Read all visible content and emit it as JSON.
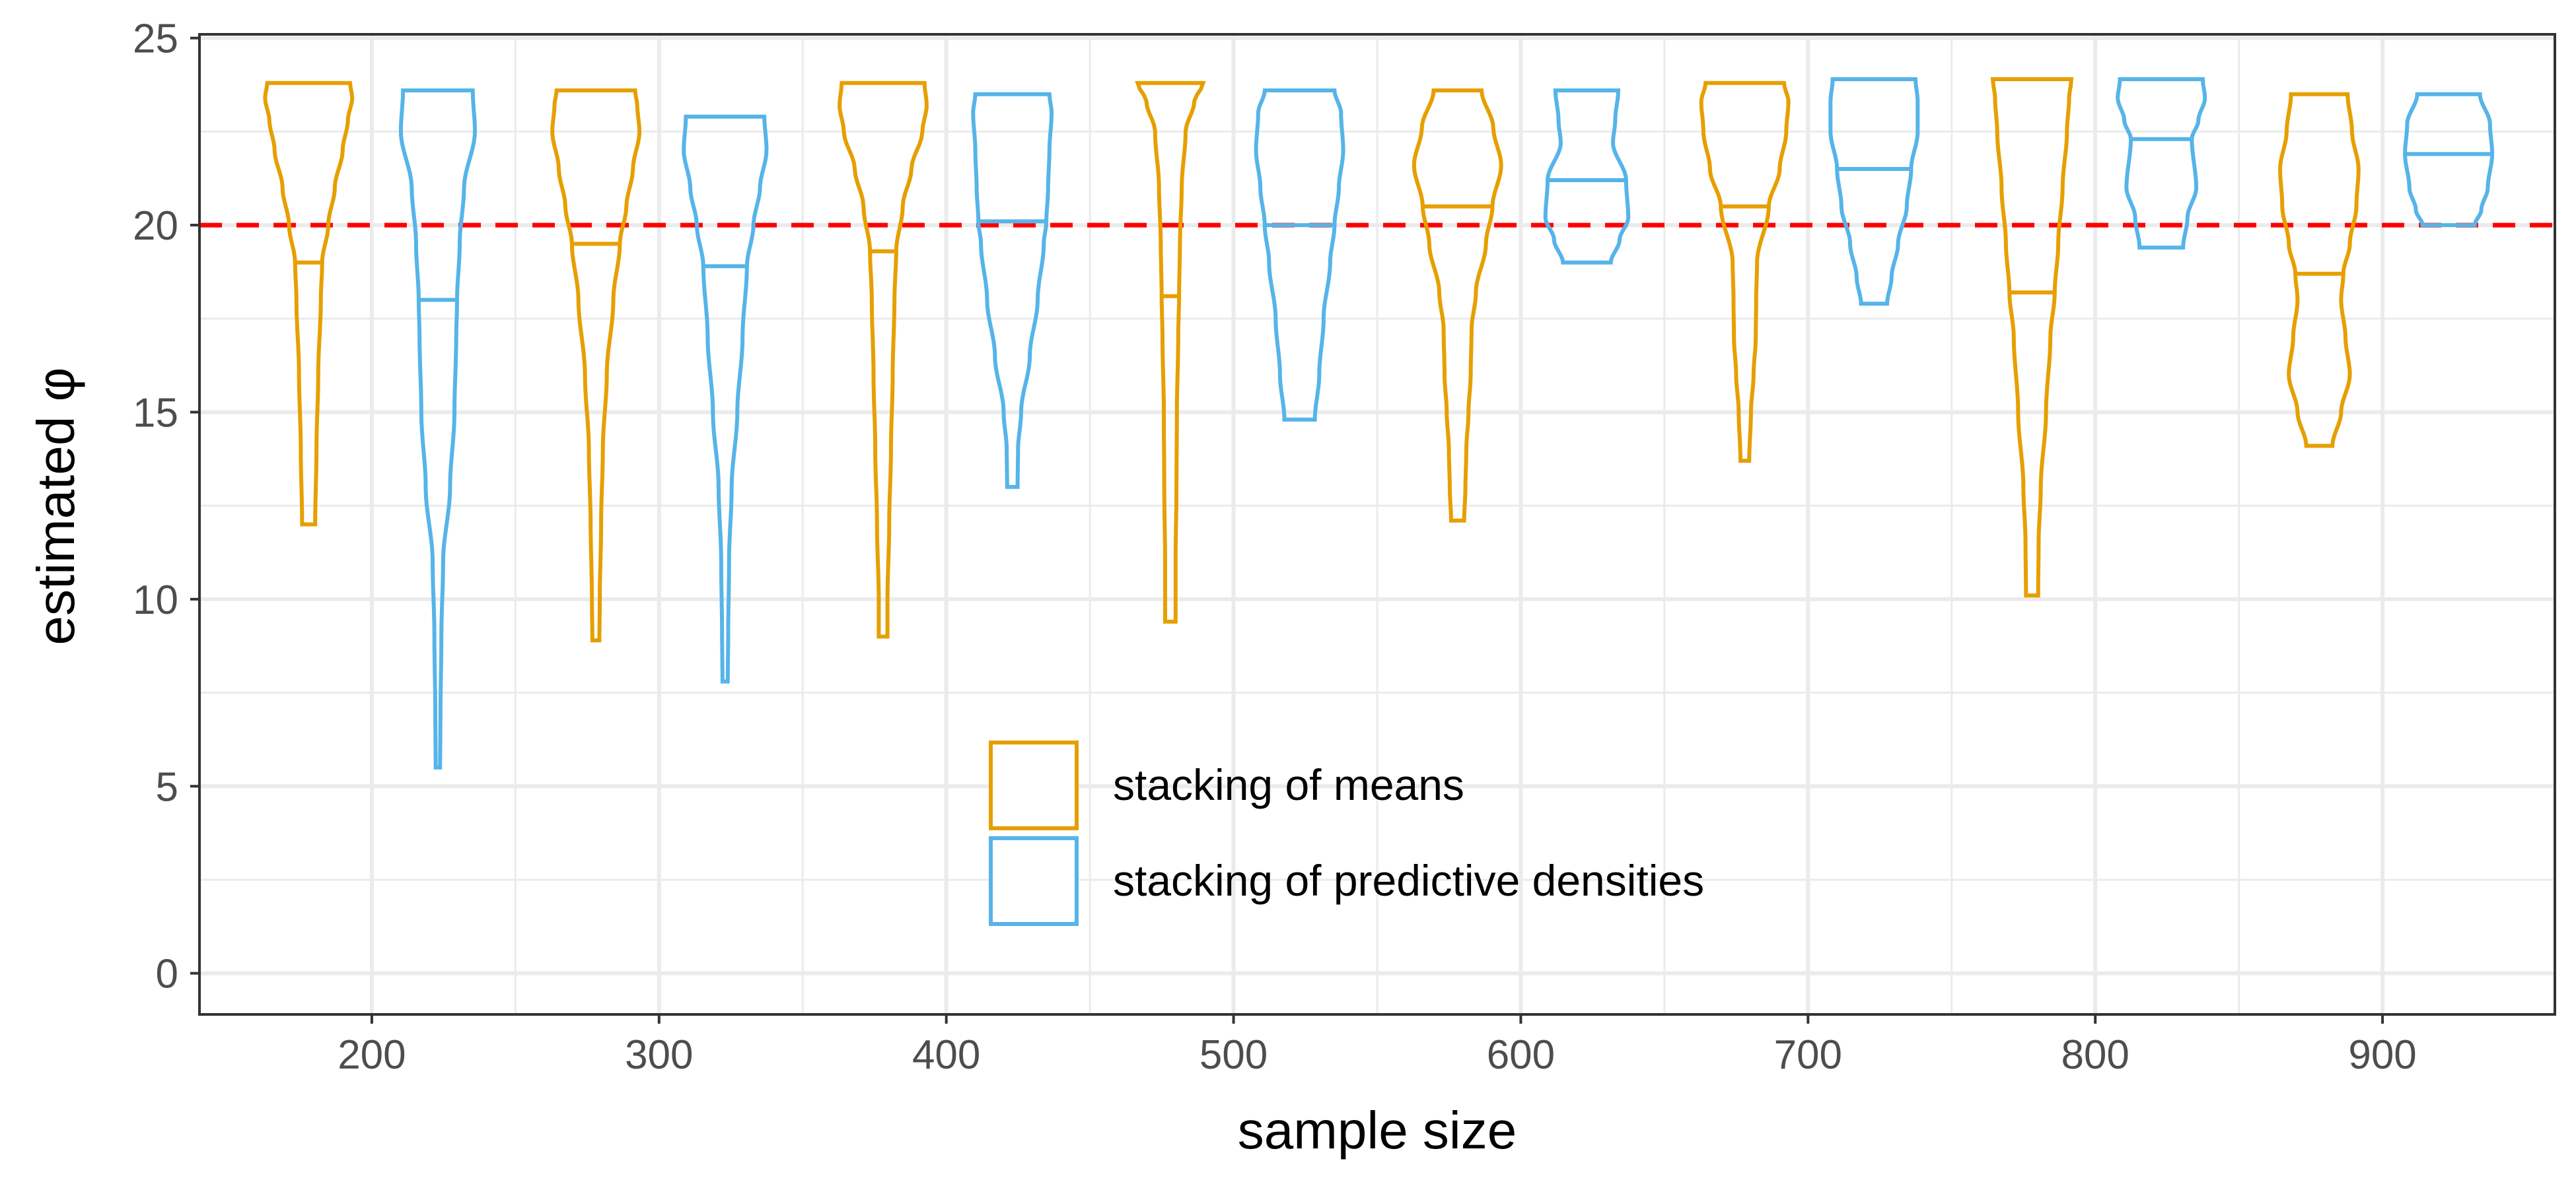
{
  "chart_data": {
    "type": "violin",
    "xlabel": "sample size",
    "ylabel": "estimated φ",
    "xlim": [
      140,
      960
    ],
    "ylim": [
      -1.1,
      25.1
    ],
    "x_ticks": [
      200,
      300,
      400,
      500,
      600,
      700,
      800,
      900
    ],
    "y_ticks": [
      0,
      5,
      10,
      15,
      20,
      25
    ],
    "reference_line": {
      "y": 20,
      "color": "#ff0000",
      "style": "dashed"
    },
    "legend_position": "bottom-center",
    "series": [
      {
        "name": "stacking of means",
        "color": "#e69f00",
        "violins": [
          {
            "x": 178,
            "min": 12.0,
            "max": 23.8,
            "median": 19.0,
            "profile": [
              [
                12.0,
                0.15
              ],
              [
                14,
                0.18
              ],
              [
                16,
                0.22
              ],
              [
                18,
                0.28
              ],
              [
                19,
                0.31
              ],
              [
                20,
                0.45
              ],
              [
                21,
                0.6
              ],
              [
                22,
                0.78
              ],
              [
                22.8,
                0.9
              ],
              [
                23.4,
                1.0
              ],
              [
                23.8,
                0.95
              ]
            ]
          },
          {
            "x": 278,
            "min": 8.9,
            "max": 23.6,
            "median": 19.5,
            "profile": [
              [
                8.9,
                0.08
              ],
              [
                10,
                0.09
              ],
              [
                12,
                0.12
              ],
              [
                14,
                0.16
              ],
              [
                16,
                0.25
              ],
              [
                18,
                0.4
              ],
              [
                19.5,
                0.55
              ],
              [
                20.5,
                0.7
              ],
              [
                21.5,
                0.85
              ],
              [
                22.5,
                1.0
              ],
              [
                23.2,
                0.95
              ],
              [
                23.6,
                0.9
              ]
            ]
          },
          {
            "x": 378,
            "min": 9.0,
            "max": 23.8,
            "median": 19.3,
            "profile": [
              [
                9.0,
                0.1
              ],
              [
                10,
                0.1
              ],
              [
                12,
                0.14
              ],
              [
                14,
                0.18
              ],
              [
                16,
                0.22
              ],
              [
                18,
                0.26
              ],
              [
                19.3,
                0.3
              ],
              [
                20.5,
                0.45
              ],
              [
                21.5,
                0.65
              ],
              [
                22.5,
                0.9
              ],
              [
                23.2,
                1.0
              ],
              [
                23.8,
                0.95
              ]
            ]
          },
          {
            "x": 478,
            "min": 9.4,
            "max": 23.8,
            "median": 18.1,
            "profile": [
              [
                9.4,
                0.12
              ],
              [
                11,
                0.12
              ],
              [
                13,
                0.14
              ],
              [
                15,
                0.15
              ],
              [
                17,
                0.18
              ],
              [
                18.1,
                0.2
              ],
              [
                19.5,
                0.22
              ],
              [
                21,
                0.26
              ],
              [
                22.5,
                0.35
              ],
              [
                23.3,
                0.55
              ],
              [
                23.8,
                0.75
              ]
            ]
          },
          {
            "x": 578,
            "min": 12.1,
            "max": 23.6,
            "median": 20.5,
            "profile": [
              [
                12.1,
                0.15
              ],
              [
                13,
                0.18
              ],
              [
                14,
                0.2
              ],
              [
                15,
                0.25
              ],
              [
                16,
                0.3
              ],
              [
                17.2,
                0.32
              ],
              [
                18.2,
                0.42
              ],
              [
                19.5,
                0.65
              ],
              [
                20.5,
                0.8
              ],
              [
                21.6,
                1.0
              ],
              [
                22.6,
                0.82
              ],
              [
                23.6,
                0.55
              ]
            ]
          },
          {
            "x": 678,
            "min": 13.7,
            "max": 23.8,
            "median": 20.5,
            "profile": [
              [
                13.7,
                0.1
              ],
              [
                15,
                0.14
              ],
              [
                16,
                0.2
              ],
              [
                17,
                0.25
              ],
              [
                18,
                0.26
              ],
              [
                19,
                0.28
              ],
              [
                20.5,
                0.55
              ],
              [
                21.5,
                0.8
              ],
              [
                22.5,
                0.95
              ],
              [
                23.3,
                1.0
              ],
              [
                23.8,
                0.9
              ]
            ]
          },
          {
            "x": 778,
            "min": 10.1,
            "max": 23.9,
            "median": 18.2,
            "profile": [
              [
                10.1,
                0.14
              ],
              [
                11.5,
                0.15
              ],
              [
                13,
                0.2
              ],
              [
                15,
                0.32
              ],
              [
                17,
                0.42
              ],
              [
                18.2,
                0.52
              ],
              [
                19.5,
                0.6
              ],
              [
                21,
                0.7
              ],
              [
                22.5,
                0.8
              ],
              [
                23.4,
                0.85
              ],
              [
                23.9,
                0.9
              ]
            ]
          },
          {
            "x": 878,
            "min": 14.1,
            "max": 23.5,
            "median": 18.7,
            "profile": [
              [
                14.1,
                0.3
              ],
              [
                15,
                0.5
              ],
              [
                16,
                0.7
              ],
              [
                17,
                0.6
              ],
              [
                18,
                0.5
              ],
              [
                18.7,
                0.55
              ],
              [
                19.5,
                0.7
              ],
              [
                20.5,
                0.85
              ],
              [
                21.5,
                0.9
              ],
              [
                22.5,
                0.75
              ],
              [
                23.5,
                0.65
              ]
            ]
          }
        ]
      },
      {
        "name": "stacking of predictive densities",
        "color": "#56b4e9",
        "violins": [
          {
            "x": 223,
            "min": 5.5,
            "max": 23.6,
            "median": 18.0,
            "profile": [
              [
                5.5,
                0.05
              ],
              [
                7,
                0.06
              ],
              [
                9,
                0.08
              ],
              [
                11,
                0.12
              ],
              [
                13,
                0.28
              ],
              [
                15,
                0.38
              ],
              [
                17,
                0.42
              ],
              [
                18,
                0.44
              ],
              [
                19.5,
                0.5
              ],
              [
                21,
                0.6
              ],
              [
                22.5,
                0.85
              ],
              [
                23.6,
                0.8
              ]
            ]
          },
          {
            "x": 323,
            "min": 7.8,
            "max": 22.9,
            "median": 18.9,
            "profile": [
              [
                7.8,
                0.06
              ],
              [
                9,
                0.07
              ],
              [
                11,
                0.09
              ],
              [
                13,
                0.15
              ],
              [
                15,
                0.28
              ],
              [
                17,
                0.4
              ],
              [
                18.9,
                0.5
              ],
              [
                20,
                0.65
              ],
              [
                21,
                0.8
              ],
              [
                22,
                0.95
              ],
              [
                22.9,
                0.9
              ]
            ]
          },
          {
            "x": 423,
            "min": 13.0,
            "max": 23.5,
            "median": 20.1,
            "profile": [
              [
                13.0,
                0.12
              ],
              [
                14,
                0.13
              ],
              [
                15,
                0.2
              ],
              [
                16.5,
                0.4
              ],
              [
                18,
                0.58
              ],
              [
                19.5,
                0.72
              ],
              [
                20.1,
                0.78
              ],
              [
                21,
                0.82
              ],
              [
                22,
                0.85
              ],
              [
                23,
                0.9
              ],
              [
                23.5,
                0.85
              ]
            ]
          },
          {
            "x": 523,
            "min": 14.8,
            "max": 23.6,
            "median": 20.0,
            "profile": [
              [
                14.8,
                0.35
              ],
              [
                16,
                0.45
              ],
              [
                17.5,
                0.55
              ],
              [
                19,
                0.7
              ],
              [
                20,
                0.8
              ],
              [
                21,
                0.9
              ],
              [
                22,
                1.0
              ],
              [
                23,
                0.95
              ],
              [
                23.6,
                0.8
              ]
            ]
          },
          {
            "x": 623,
            "min": 19.0,
            "max": 23.6,
            "median": 21.2,
            "profile": [
              [
                19.0,
                0.55
              ],
              [
                19.6,
                0.75
              ],
              [
                20.2,
                0.95
              ],
              [
                21.2,
                0.9
              ],
              [
                22.2,
                0.6
              ],
              [
                22.8,
                0.65
              ],
              [
                23.6,
                0.72
              ]
            ]
          },
          {
            "x": 723,
            "min": 17.9,
            "max": 23.9,
            "median": 21.5,
            "profile": [
              [
                17.9,
                0.3
              ],
              [
                18.6,
                0.4
              ],
              [
                19.5,
                0.55
              ],
              [
                20.5,
                0.75
              ],
              [
                21.5,
                0.85
              ],
              [
                22.5,
                1.0
              ],
              [
                23.3,
                1.0
              ],
              [
                23.9,
                0.95
              ]
            ]
          },
          {
            "x": 823,
            "min": 19.4,
            "max": 23.9,
            "median": 22.3,
            "profile": [
              [
                19.4,
                0.5
              ],
              [
                20.2,
                0.6
              ],
              [
                21,
                0.8
              ],
              [
                22.3,
                0.7
              ],
              [
                22.8,
                0.85
              ],
              [
                23.4,
                1.0
              ],
              [
                23.9,
                0.95
              ]
            ]
          },
          {
            "x": 923,
            "min": 20.0,
            "max": 23.5,
            "median": 21.9,
            "profile": [
              [
                20.0,
                0.6
              ],
              [
                20.4,
                0.75
              ],
              [
                21,
                0.9
              ],
              [
                21.9,
                1.0
              ],
              [
                22.7,
                0.95
              ],
              [
                23.5,
                0.72
              ]
            ]
          }
        ]
      }
    ]
  }
}
